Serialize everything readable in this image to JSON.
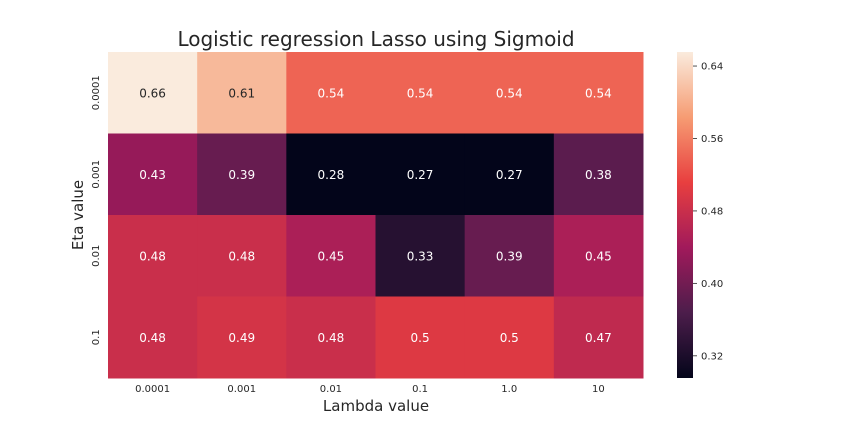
{
  "chart_data": {
    "type": "heatmap",
    "title": "Logistic regression Lasso using Sigmoid",
    "xlabel": "Lambda value",
    "ylabel": "Eta value",
    "x_categories": [
      "0.0001",
      "0.001",
      "0.01",
      "0.1",
      "1.0",
      "10"
    ],
    "y_categories": [
      "0.0001",
      "0.001",
      "0.01",
      "0.1"
    ],
    "values": [
      [
        0.66,
        0.61,
        0.54,
        0.54,
        0.54,
        0.54
      ],
      [
        0.43,
        0.39,
        0.28,
        0.27,
        0.27,
        0.38
      ],
      [
        0.48,
        0.48,
        0.45,
        0.33,
        0.39,
        0.45
      ],
      [
        0.48,
        0.49,
        0.48,
        0.5,
        0.5,
        0.47
      ]
    ],
    "value_labels": [
      [
        "0.66",
        "0.61",
        "0.54",
        "0.54",
        "0.54",
        "0.54"
      ],
      [
        "0.43",
        "0.39",
        "0.28",
        "0.27",
        "0.27",
        "0.38"
      ],
      [
        "0.48",
        "0.48",
        "0.45",
        "0.33",
        "0.39",
        "0.45"
      ],
      [
        "0.48",
        "0.49",
        "0.48",
        "0.5",
        "0.5",
        "0.47"
      ]
    ],
    "colorbar": {
      "range": [
        0.2955,
        0.6555
      ],
      "ticks": [
        0.32,
        0.4,
        0.48,
        0.56,
        0.64
      ],
      "tick_labels": [
        "0.32",
        "0.40",
        "0.48",
        "0.56",
        "0.64"
      ]
    },
    "colormap": "rocket",
    "colormap_stops": [
      "#03051a",
      "#4c1d4b",
      "#a11a5b",
      "#e83f3f",
      "#f69c73",
      "#faebdd"
    ],
    "annotation_color_dark": "#262626",
    "annotation_color_light": "#ffffff",
    "grid": false
  }
}
